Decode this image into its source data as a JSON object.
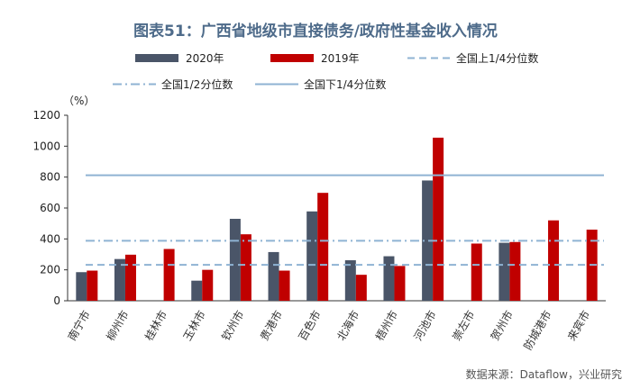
{
  "chart_data": {
    "type": "bar",
    "title": "图表51：广西省地级市直接债务/政府性基金收入情况",
    "ylabel": "（%）",
    "ylim": [
      0,
      1200
    ],
    "yticks": [
      0,
      200,
      400,
      600,
      800,
      1000,
      1200
    ],
    "categories": [
      "南宁市",
      "柳州市",
      "桂林市",
      "玉林市",
      "钦州市",
      "贵港市",
      "百色市",
      "北海市",
      "梧州市",
      "河池市",
      "崇左市",
      "贺州市",
      "防城港市",
      "来宾市"
    ],
    "series": [
      {
        "name": "2020年",
        "color": "#4a5568",
        "values": [
          185,
          270,
          null,
          130,
          530,
          315,
          578,
          262,
          288,
          778,
          null,
          375,
          null,
          null
        ]
      },
      {
        "name": "2019年",
        "color": "#c00000",
        "values": [
          195,
          298,
          335,
          200,
          430,
          195,
          698,
          168,
          225,
          1055,
          370,
          380,
          520,
          460
        ]
      }
    ],
    "reference_lines": [
      {
        "name": "全国上1/4分位数",
        "value": 232,
        "style": "dashed",
        "color": "#8fb3d3"
      },
      {
        "name": "全国1/2分位数",
        "value": 388,
        "style": "dashdot",
        "color": "#8fb3d3"
      },
      {
        "name": "全国下1/4分位数",
        "value": 812,
        "style": "solid",
        "color": "#8fb3d3"
      }
    ],
    "grid": false,
    "legend_position": "top"
  },
  "source": "数据来源：Dataflow，兴业研究"
}
